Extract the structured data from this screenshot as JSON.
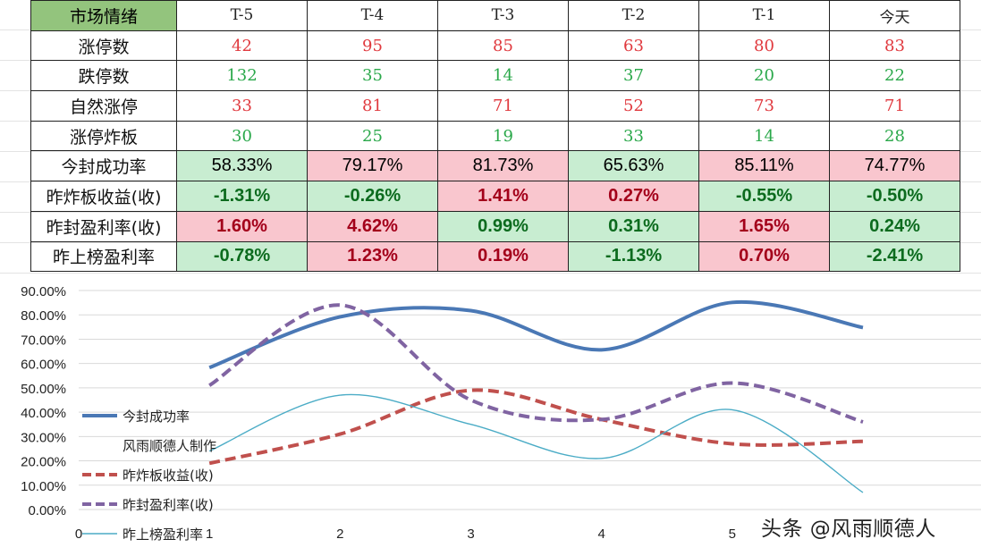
{
  "table": {
    "corner": "市场情绪",
    "columns": [
      "T-5",
      "T-4",
      "T-3",
      "T-2",
      "T-1",
      "今天"
    ],
    "rows": [
      {
        "label": "涨停数",
        "cells": [
          {
            "text": "42",
            "tone": "red"
          },
          {
            "text": "95",
            "tone": "red"
          },
          {
            "text": "85",
            "tone": "red"
          },
          {
            "text": "63",
            "tone": "red"
          },
          {
            "text": "80",
            "tone": "red"
          },
          {
            "text": "83",
            "tone": "red"
          }
        ]
      },
      {
        "label": "跌停数",
        "cells": [
          {
            "text": "132",
            "tone": "grn"
          },
          {
            "text": "35",
            "tone": "grn"
          },
          {
            "text": "14",
            "tone": "grn"
          },
          {
            "text": "37",
            "tone": "grn"
          },
          {
            "text": "20",
            "tone": "grn"
          },
          {
            "text": "22",
            "tone": "grn"
          }
        ]
      },
      {
        "label": "自然涨停",
        "cells": [
          {
            "text": "33",
            "tone": "red"
          },
          {
            "text": "81",
            "tone": "red"
          },
          {
            "text": "71",
            "tone": "red"
          },
          {
            "text": "52",
            "tone": "red"
          },
          {
            "text": "73",
            "tone": "red"
          },
          {
            "text": "71",
            "tone": "red"
          }
        ]
      },
      {
        "label": "涨停炸板",
        "cells": [
          {
            "text": "30",
            "tone": "grn"
          },
          {
            "text": "25",
            "tone": "grn"
          },
          {
            "text": "19",
            "tone": "grn"
          },
          {
            "text": "33",
            "tone": "grn"
          },
          {
            "text": "14",
            "tone": "grn"
          },
          {
            "text": "28",
            "tone": "grn"
          }
        ]
      },
      {
        "label": "今封成功率",
        "cells": [
          {
            "text": "58.33%",
            "tone": "mint"
          },
          {
            "text": "79.17%",
            "tone": "pink"
          },
          {
            "text": "81.73%",
            "tone": "pink"
          },
          {
            "text": "65.63%",
            "tone": "mint"
          },
          {
            "text": "85.11%",
            "tone": "pink"
          },
          {
            "text": "74.77%",
            "tone": "pink"
          }
        ]
      },
      {
        "label": "昨炸板收益(收)",
        "cells": [
          {
            "text": "-1.31%",
            "tone": "mint"
          },
          {
            "text": "-0.26%",
            "tone": "mint"
          },
          {
            "text": "1.41%",
            "tone": "pink"
          },
          {
            "text": "0.27%",
            "tone": "pink"
          },
          {
            "text": "-0.55%",
            "tone": "mint"
          },
          {
            "text": "-0.50%",
            "tone": "mint"
          }
        ]
      },
      {
        "label": "昨封盈利率(收)",
        "cells": [
          {
            "text": "1.60%",
            "tone": "pink"
          },
          {
            "text": "4.62%",
            "tone": "pink"
          },
          {
            "text": "0.99%",
            "tone": "mint"
          },
          {
            "text": "0.31%",
            "tone": "mint"
          },
          {
            "text": "1.65%",
            "tone": "pink"
          },
          {
            "text": "0.24%",
            "tone": "mint"
          }
        ]
      },
      {
        "label": "昨上榜盈利率",
        "cells": [
          {
            "text": "-0.78%",
            "tone": "mint"
          },
          {
            "text": "1.23%",
            "tone": "pink"
          },
          {
            "text": "0.19%",
            "tone": "pink"
          },
          {
            "text": "-1.13%",
            "tone": "mint"
          },
          {
            "text": "0.70%",
            "tone": "pink"
          },
          {
            "text": "-2.41%",
            "tone": "mint"
          }
        ]
      }
    ]
  },
  "chart_data": {
    "type": "line",
    "title": "",
    "xlabel": "",
    "ylabel": "",
    "x": [
      1,
      2,
      3,
      4,
      5,
      6
    ],
    "xlim": [
      0,
      6
    ],
    "ylim": [
      0,
      90
    ],
    "y_ticks": [
      0,
      10,
      20,
      30,
      40,
      50,
      60,
      70,
      80,
      90
    ],
    "y_tick_labels": [
      "0.00%",
      "10.00%",
      "20.00%",
      "30.00%",
      "40.00%",
      "50.00%",
      "60.00%",
      "70.00%",
      "80.00%",
      "90.00%"
    ],
    "x_tick_labels": [
      "0",
      "1",
      "2",
      "3",
      "4",
      "5"
    ],
    "series": [
      {
        "name": "今封成功率",
        "values": [
          58.33,
          79.17,
          81.73,
          65.63,
          85.11,
          74.77
        ],
        "color": "#4a78b5",
        "style": "solid",
        "weight": "thick"
      },
      {
        "name": "昨炸板收益(收)",
        "values": [
          19,
          31,
          49,
          37,
          27,
          28
        ],
        "color": "#c0504d",
        "style": "dashed",
        "weight": "thick"
      },
      {
        "name": "昨封盈利率(收)",
        "values": [
          51,
          84,
          45,
          37,
          52,
          36
        ],
        "color": "#8064a2",
        "style": "dashed",
        "weight": "thick"
      },
      {
        "name": "昨上榜盈利率",
        "values": [
          24,
          47,
          35,
          21,
          41,
          7
        ],
        "color": "#4bacc6",
        "style": "solid",
        "weight": "thin"
      }
    ],
    "legend": {
      "placement": "left-inside",
      "entries": [
        "今封成功率",
        "风雨顺德人制作",
        "昨炸板收益(收)",
        "昨封盈利率(收)",
        "昨上榜盈利率"
      ]
    }
  },
  "watermark": "头条 @风雨顺德人"
}
